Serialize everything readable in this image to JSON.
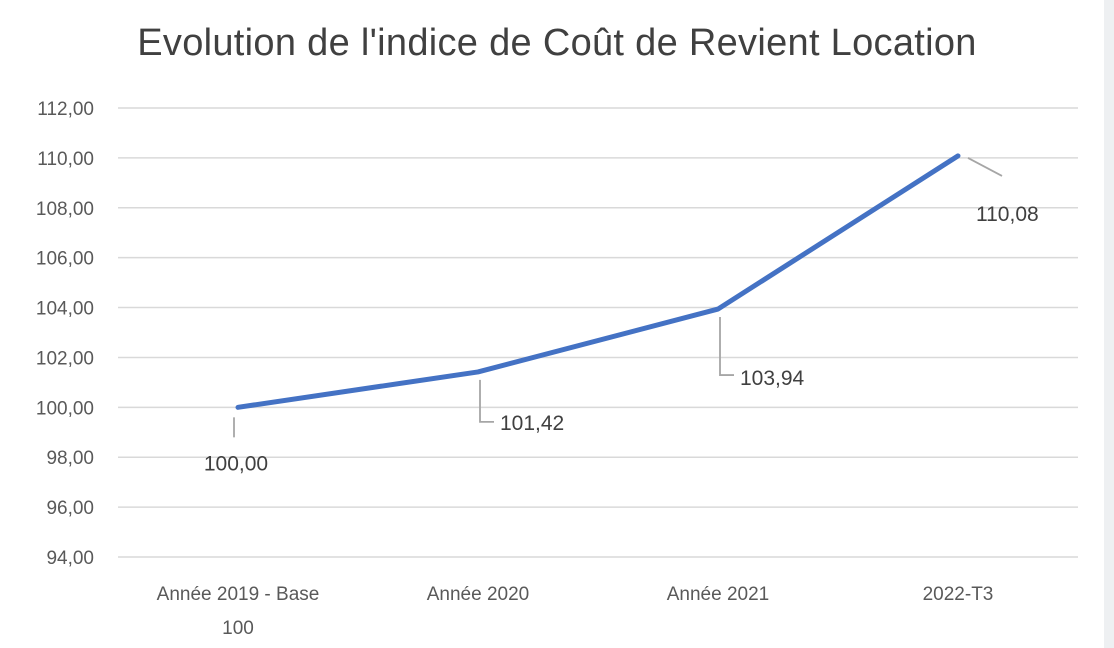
{
  "chart_data": {
    "type": "line",
    "title": "Evolution de l'indice de Coût de Revient Location",
    "xlabel": "",
    "ylabel": "",
    "categories": [
      "Année 2019 - Base 100",
      "Année 2020",
      "Année 2021",
      "2022-T3"
    ],
    "category_lines": [
      [
        "Année 2019 - Base",
        "100"
      ],
      [
        "Année 2020"
      ],
      [
        "Année 2021"
      ],
      [
        "2022-T3"
      ]
    ],
    "series": [
      {
        "values": [
          100.0,
          101.42,
          103.94,
          110.08
        ],
        "data_labels": [
          "100,00",
          "101,42",
          "103,94",
          "110,08"
        ],
        "color": "#4472c4"
      }
    ],
    "ylim": [
      94,
      112
    ],
    "yticks": [
      94,
      96,
      98,
      100,
      102,
      104,
      106,
      108,
      110,
      112
    ],
    "ytick_labels": [
      "94,00",
      "96,00",
      "98,00",
      "100,00",
      "102,00",
      "104,00",
      "106,00",
      "108,00",
      "110,00",
      "112,00"
    ],
    "grid": true,
    "legend": "none",
    "gridline_color": "#d9d9d9",
    "leader_line_color": "#a6a6a6"
  }
}
